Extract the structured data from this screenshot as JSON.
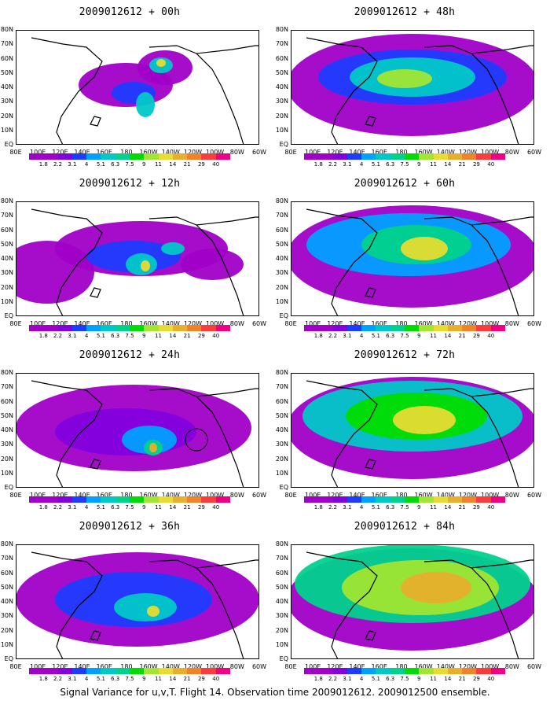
{
  "panels": [
    {
      "id": "p00",
      "title": "2009012612 + 00h",
      "col": 0,
      "row": 0
    },
    {
      "id": "p12",
      "title": "2009012612 + 12h",
      "col": 0,
      "row": 1
    },
    {
      "id": "p24",
      "title": "2009012612 + 24h",
      "col": 0,
      "row": 2
    },
    {
      "id": "p36",
      "title": "2009012612 + 36h",
      "col": 0,
      "row": 3
    },
    {
      "id": "p48",
      "title": "2009012612 + 48h",
      "col": 1,
      "row": 0
    },
    {
      "id": "p60",
      "title": "2009012612 + 60h",
      "col": 1,
      "row": 1
    },
    {
      "id": "p72",
      "title": "2009012612 + 72h",
      "col": 1,
      "row": 2
    },
    {
      "id": "p84",
      "title": "2009012612 + 84h",
      "col": 1,
      "row": 3
    }
  ],
  "lat_labels": [
    "80N",
    "70N",
    "60N",
    "50N",
    "40N",
    "30N",
    "20N",
    "10N",
    "EQ"
  ],
  "lon_labels": [
    "80E",
    "100E",
    "120E",
    "140E",
    "160E",
    "180",
    "160W",
    "140W",
    "120W",
    "100W",
    "80W",
    "60W"
  ],
  "colorbar": {
    "labels": [
      "1.8",
      "2.2",
      "3.1",
      "4",
      "5.1",
      "6.3",
      "7.5",
      "9",
      "11",
      "14",
      "21",
      "29",
      "40"
    ],
    "colors": [
      "#a000c8",
      "#8200dc",
      "#1e3cff",
      "#00a0ff",
      "#00c8c8",
      "#00d28c",
      "#00dc00",
      "#a0e632",
      "#e6dc32",
      "#e6af2d",
      "#f08228",
      "#fa3c3c",
      "#f00082"
    ]
  },
  "footer": "Signal Variance for u,v,T. Flight 14. Observation time 2009012612. 2009012500 ensemble."
}
